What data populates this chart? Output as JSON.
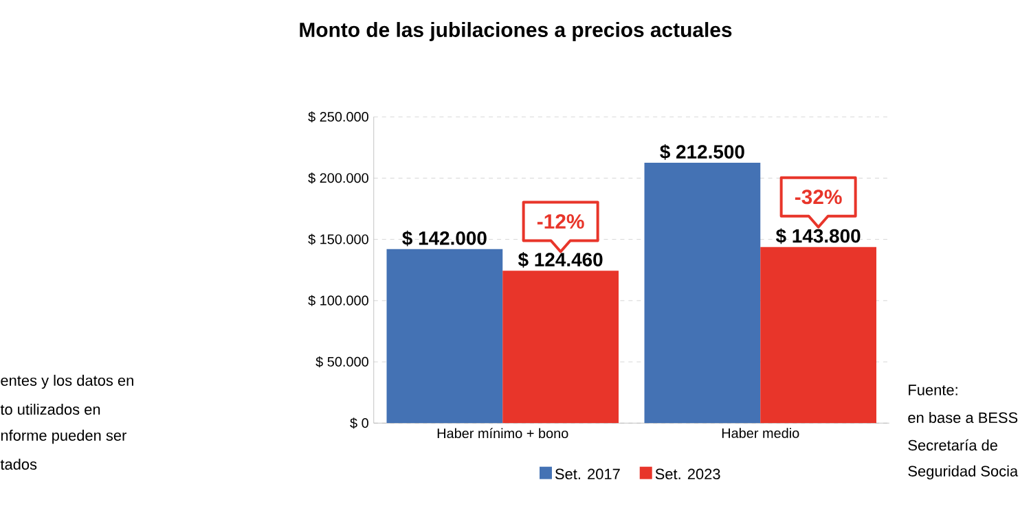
{
  "chart_data": {
    "type": "bar",
    "title": "Monto de las jubilaciones a precios actuales",
    "categories": [
      "Haber mínimo + bono",
      "Haber medio"
    ],
    "series": [
      {
        "name": "Set. 2017",
        "color": "#4472b4",
        "values": [
          142000,
          212500
        ],
        "value_labels": [
          "$ 142.000",
          "$ 212.500"
        ]
      },
      {
        "name": "Set. 2023",
        "color": "#e8352a",
        "values": [
          124460,
          143800
        ],
        "value_labels": [
          "$ 124.460",
          "$ 143.800"
        ]
      }
    ],
    "ylim": [
      0,
      250000
    ],
    "yticks": [
      {
        "value": 0,
        "label": "$ 0"
      },
      {
        "value": 50000,
        "label": "$ 50.000"
      },
      {
        "value": 100000,
        "label": "$ 100.000"
      },
      {
        "value": 150000,
        "label": "$ 150.000"
      },
      {
        "value": 200000,
        "label": "$ 200.000"
      },
      {
        "value": 250000,
        "label": "$ 250.000"
      }
    ],
    "grid": "y",
    "legend": "bottom",
    "annotations": [
      {
        "text": "-12%",
        "x": "Haber mínimo + bono",
        "y": 140000
      },
      {
        "text": "-32%",
        "x": "Haber medio",
        "y": 160000
      },
      "entes y los datos en",
      "to utilizados en",
      "nforme pueden ser",
      "tados",
      "Fuente:",
      "en base a BESS",
      "Secretaría de",
      "Seguridad Socia"
    ]
  }
}
